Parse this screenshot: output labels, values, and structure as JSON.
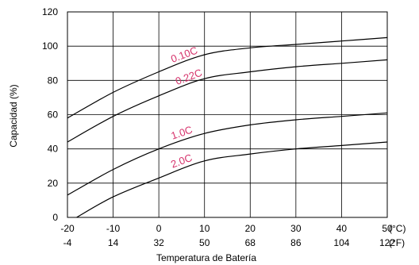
{
  "chart_data": {
    "type": "line",
    "xlabel": "Temperatura de Batería",
    "ylabel": "Capacidad (%)",
    "xlim": [
      -20,
      50
    ],
    "ylim": [
      0,
      120
    ],
    "x_ticks": [
      -20,
      -10,
      0,
      10,
      20,
      30,
      40,
      50
    ],
    "x_tick_labels": [
      "-20",
      "-10",
      "0",
      "10",
      "20",
      "30",
      "40",
      "50"
    ],
    "x_secondary_tick_labels": [
      "-4",
      "14",
      "32",
      "50",
      "68",
      "86",
      "104",
      "122"
    ],
    "x_unit_primary": "(°C)",
    "x_unit_secondary": "(°F)",
    "y_ticks": [
      0,
      20,
      40,
      60,
      80,
      100,
      120
    ],
    "y_tick_labels": [
      "0",
      "20",
      "40",
      "60",
      "80",
      "100",
      "120"
    ],
    "grid": true,
    "label_color": "#d6336c",
    "series": [
      {
        "name": "0.10C",
        "x": [
          -20,
          -10,
          0,
          10,
          20,
          30,
          40,
          50
        ],
        "y": [
          58,
          73,
          85,
          95,
          99,
          101,
          103,
          105
        ]
      },
      {
        "name": "0.22C",
        "x": [
          -20,
          -10,
          0,
          10,
          20,
          30,
          40,
          50
        ],
        "y": [
          44,
          59,
          71,
          81,
          85,
          88,
          90,
          92
        ]
      },
      {
        "name": "1.0C",
        "x": [
          -20,
          -10,
          0,
          10,
          20,
          30,
          40,
          50
        ],
        "y": [
          13,
          28,
          40,
          49,
          54,
          57,
          59,
          61
        ]
      },
      {
        "name": "2.0C",
        "x": [
          -18,
          -10,
          0,
          10,
          20,
          30,
          40,
          50
        ],
        "y": [
          0,
          12,
          23,
          33,
          37,
          40,
          42,
          44
        ]
      }
    ]
  }
}
